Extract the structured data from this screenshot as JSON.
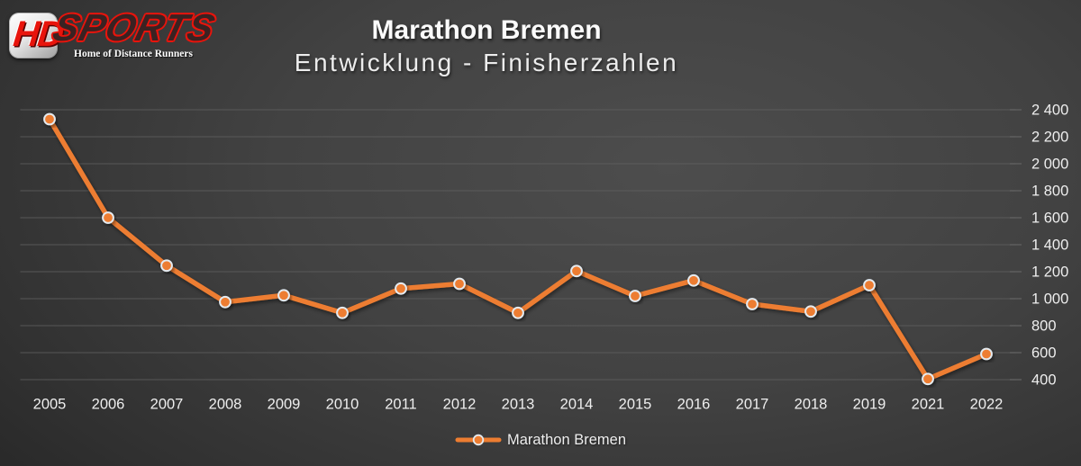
{
  "logo": {
    "badge_text": "HD",
    "brand_text": "SPORTS",
    "tagline": "Home of Distance Runners",
    "brand_color": "#e8140c"
  },
  "chart_data": {
    "type": "line",
    "title": "Marathon Bremen",
    "subtitle": "Entwicklung - Finisherzahlen",
    "categories": [
      "2005",
      "2006",
      "2007",
      "2008",
      "2009",
      "2010",
      "2011",
      "2012",
      "2013",
      "2014",
      "2015",
      "2016",
      "2017",
      "2018",
      "2019",
      "2021",
      "2022"
    ],
    "series": [
      {
        "name": "Marathon Bremen",
        "values": [
          2330,
          1600,
          1245,
          975,
          1025,
          895,
          1075,
          1110,
          895,
          1205,
          1020,
          1135,
          960,
          905,
          1100,
          405,
          590
        ]
      }
    ],
    "ylim": [
      400,
      2400
    ],
    "yticks": [
      400,
      600,
      800,
      1000,
      1200,
      1400,
      1600,
      1800,
      2000,
      2200,
      2400
    ],
    "ytick_labels": [
      "400",
      "600",
      "800",
      "1 000",
      "1 200",
      "1 400",
      "1 600",
      "1 800",
      "2 000",
      "2 200",
      "2 400"
    ],
    "grid": "horizontal",
    "legend_position": "bottom",
    "line_color": "#ED7D31",
    "marker_fill": "#ED7D31",
    "marker_border": "#E4EAEF",
    "gridline_color": "#606060",
    "label_color": "#eeeeee"
  }
}
